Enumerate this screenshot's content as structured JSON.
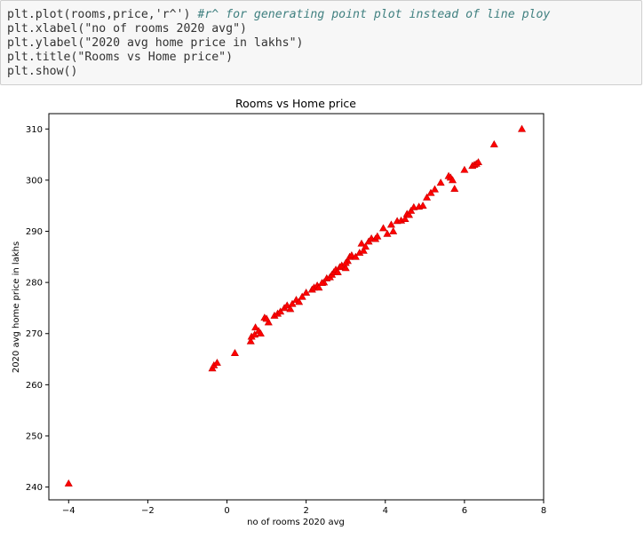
{
  "code_cell": {
    "lines": [
      {
        "code": "plt.plot(rooms,price,'r^') ",
        "comment": "#r^ for generating point plot instead of line ploy"
      },
      {
        "code": "plt.xlabel(\"no of rooms 2020 avg\")",
        "comment": ""
      },
      {
        "code": "plt.ylabel(\"2020 avg home price in lakhs\")",
        "comment": ""
      },
      {
        "code": "plt.title(\"Rooms vs Home price\")",
        "comment": ""
      },
      {
        "code": "plt.show()",
        "comment": ""
      }
    ]
  },
  "chart_data": {
    "type": "scatter",
    "title": "Rooms vs Home price",
    "xlabel": "no of rooms 2020 avg",
    "ylabel": "2020 avg home price in lakhs",
    "xlim": [
      -4.5,
      8
    ],
    "ylim": [
      237.5,
      313
    ],
    "xticks": [
      -4,
      -2,
      0,
      2,
      4,
      6,
      8
    ],
    "xtick_labels": [
      "−4",
      "−2",
      "0",
      "2",
      "4",
      "6",
      "8"
    ],
    "yticks": [
      240,
      250,
      260,
      270,
      280,
      290,
      300,
      310
    ],
    "ytick_labels": [
      "240",
      "250",
      "260",
      "270",
      "280",
      "290",
      "300",
      "310"
    ],
    "grid": false,
    "marker": "triangle-up",
    "color": "#ff0000",
    "edge_color": "#cc0000",
    "series": [
      {
        "x": [
          -4.0,
          -0.37,
          -0.33,
          -0.25,
          0.2,
          0.6,
          0.62,
          0.7,
          0.72,
          0.8,
          0.85,
          0.95,
          1.05,
          1.2,
          1.28,
          1.35,
          1.45,
          1.52,
          1.6,
          1.65,
          1.75,
          1.82,
          1.9,
          2.0,
          2.15,
          2.2,
          2.28,
          2.32,
          2.45,
          2.52,
          2.6,
          2.65,
          2.7,
          2.75,
          2.8,
          2.85,
          2.9,
          3.0,
          3.05,
          3.1,
          3.15,
          3.25,
          3.35,
          3.4,
          3.45,
          3.5,
          3.58,
          3.65,
          3.75,
          3.8,
          3.95,
          4.05,
          4.15,
          4.2,
          4.3,
          4.4,
          4.5,
          4.55,
          4.6,
          4.65,
          4.72,
          4.85,
          4.95,
          5.05,
          5.15,
          5.25,
          5.4,
          5.6,
          5.65,
          5.7,
          5.75,
          6.0,
          6.2,
          6.25,
          6.3,
          6.35,
          6.75,
          7.45,
          1.0,
          2.4,
          3.0
        ],
        "y": [
          240.7,
          263.2,
          263.8,
          264.3,
          266.2,
          268.5,
          269.4,
          269.8,
          271.2,
          270.5,
          270.0,
          273.1,
          272.2,
          273.5,
          273.9,
          274.3,
          275.0,
          275.5,
          274.8,
          275.8,
          276.6,
          276.2,
          277.2,
          278.0,
          278.6,
          279.0,
          279.4,
          279.0,
          280.0,
          280.8,
          281.0,
          281.5,
          282.0,
          282.5,
          282.0,
          283.0,
          283.3,
          282.8,
          284.2,
          285.0,
          285.3,
          285.0,
          285.8,
          287.6,
          286.2,
          287.0,
          288.0,
          288.6,
          288.5,
          289.0,
          290.6,
          289.5,
          291.3,
          290.0,
          292.0,
          292.1,
          292.4,
          293.4,
          293.2,
          294.0,
          294.7,
          294.8,
          295.0,
          296.6,
          297.5,
          298.2,
          299.5,
          300.8,
          300.5,
          300.0,
          298.3,
          302.0,
          302.8,
          303.0,
          303.2,
          303.5,
          307.0,
          310.0,
          272.9,
          279.9,
          283.8
        ]
      }
    ]
  }
}
